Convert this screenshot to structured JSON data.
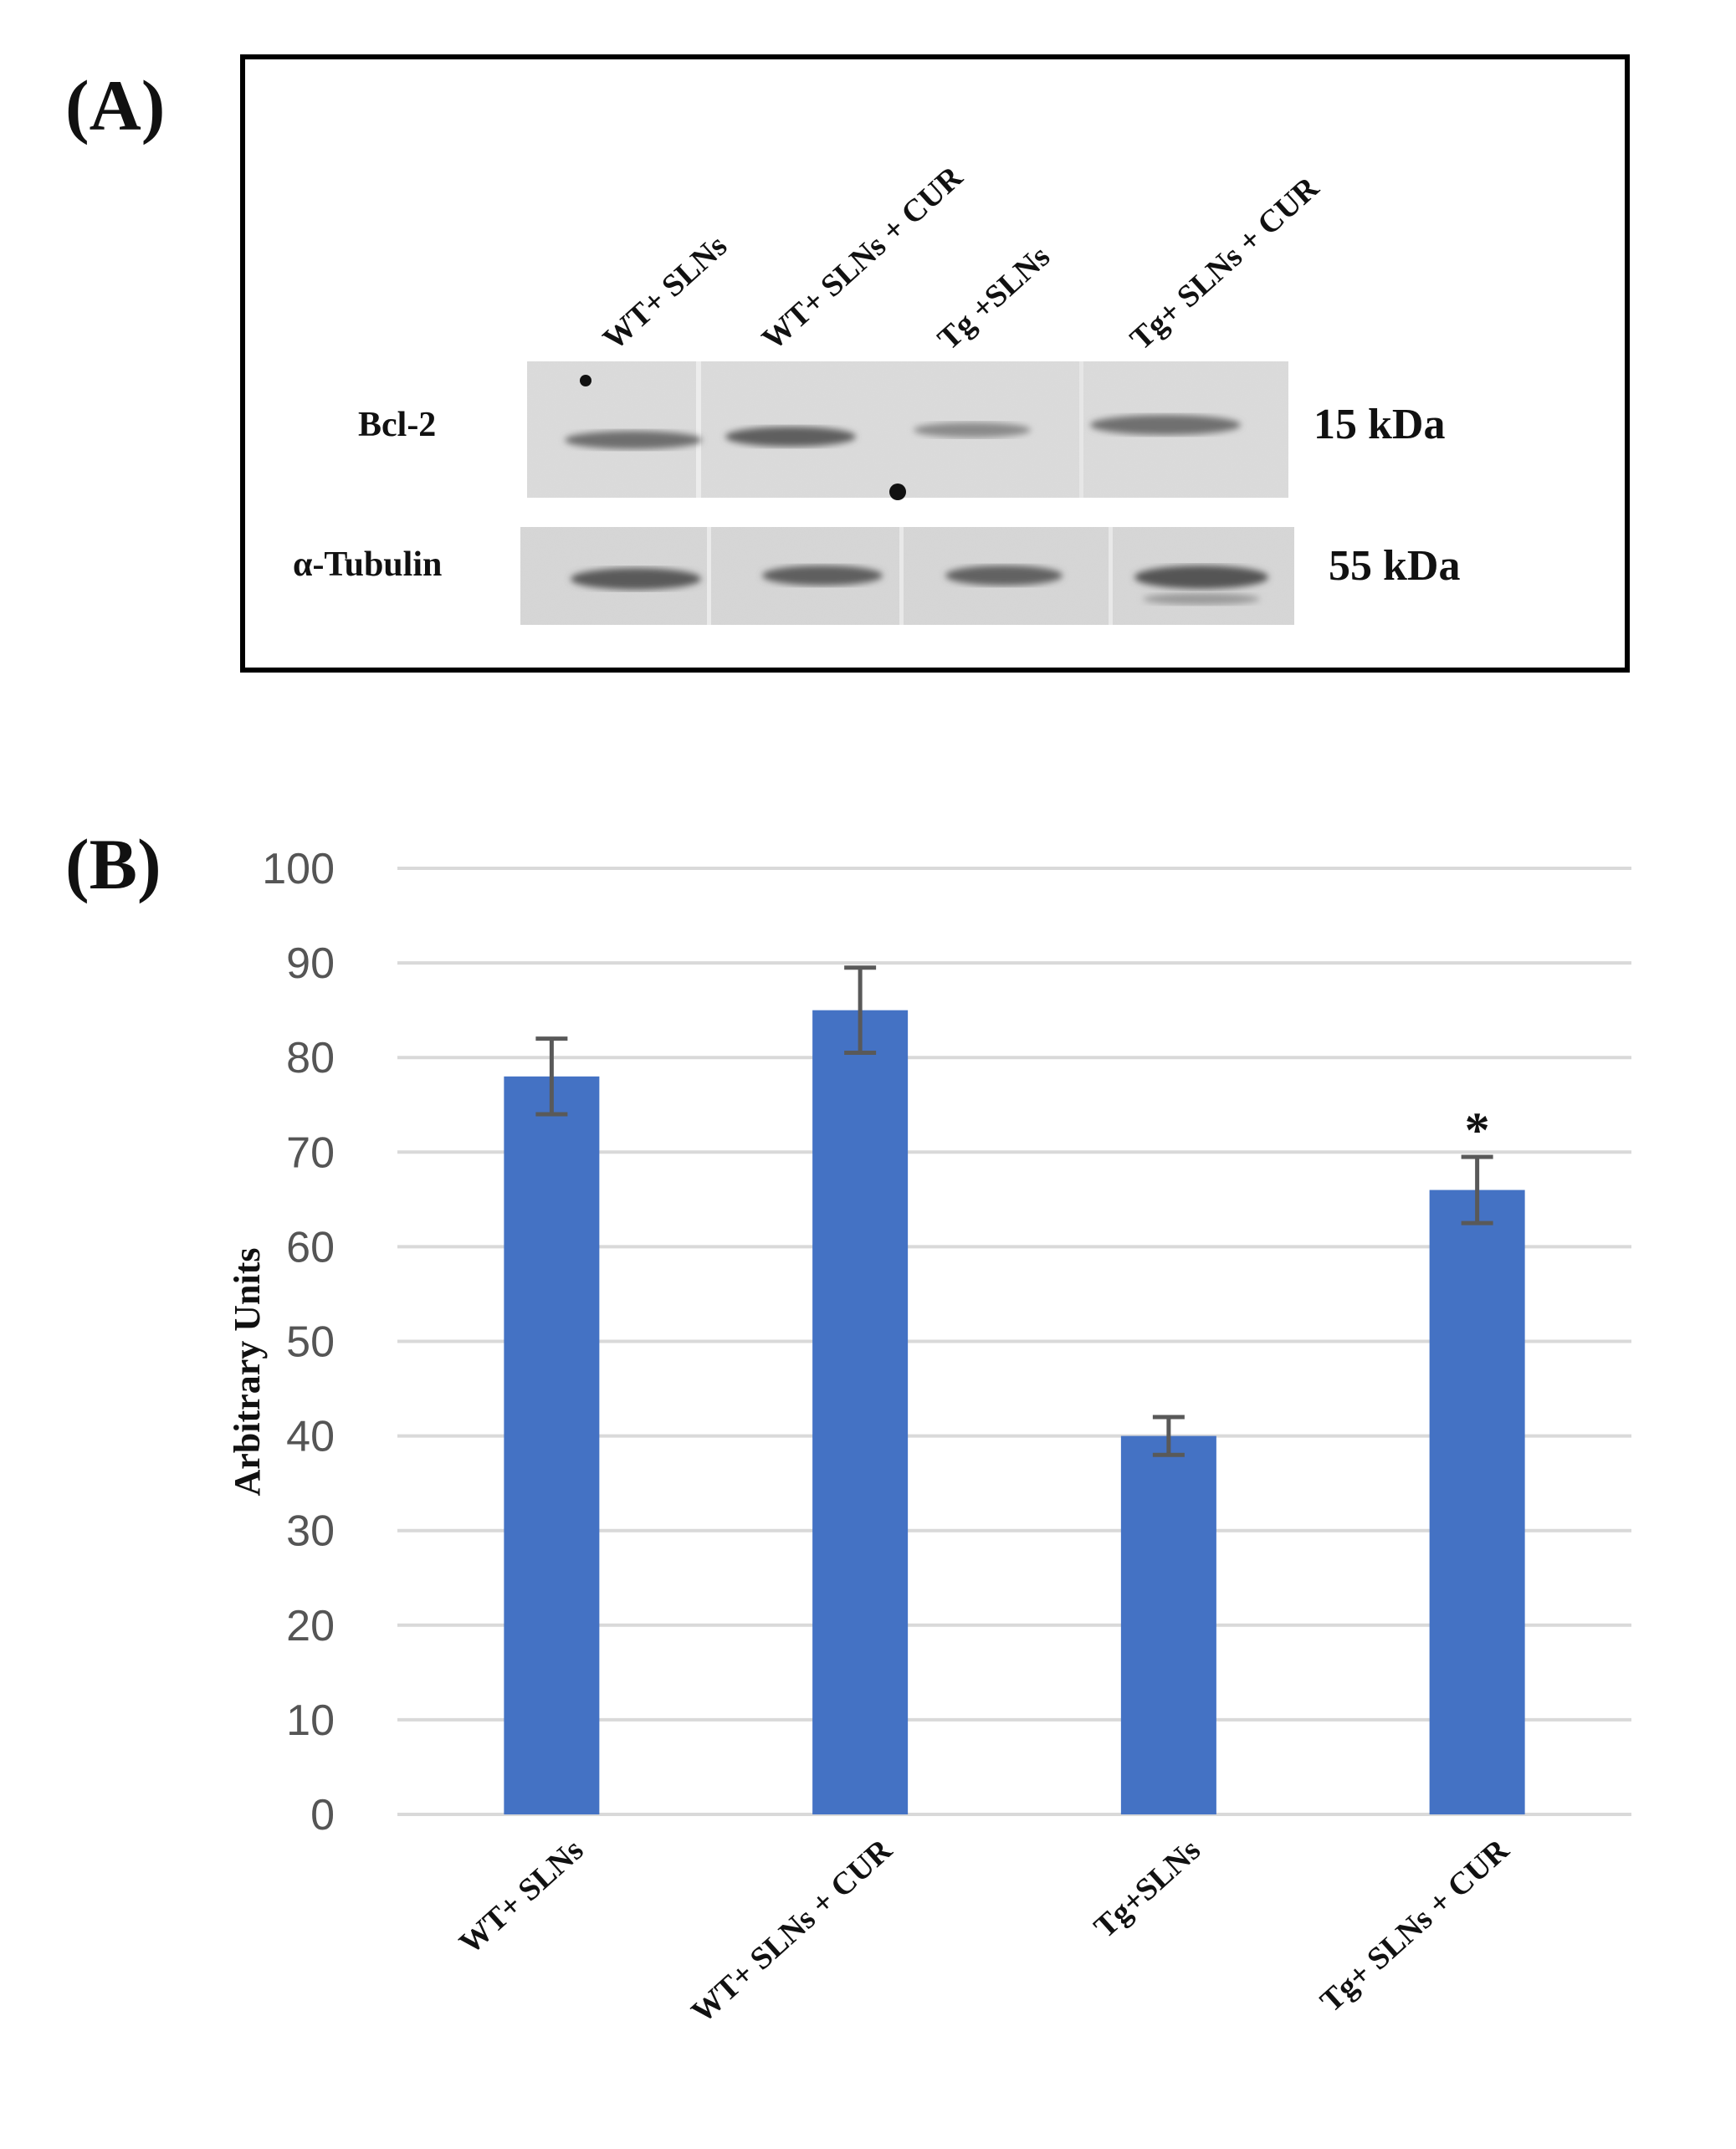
{
  "panel_a": {
    "label": "(A)",
    "lanes": [
      "WT+ SLNs",
      "WT+ SLNs + CUR",
      "Tg +SLNs",
      "Tg+ SLNs + CUR"
    ],
    "rows": [
      {
        "name": "Bcl-2",
        "size": "15 kDa"
      },
      {
        "name": "α-Tubulin",
        "size": "55 kDa"
      }
    ]
  },
  "panel_b": {
    "label": "(B)"
  },
  "chart_data": {
    "type": "bar",
    "categories": [
      "WT+ SLNs",
      "WT+ SLNs + CUR",
      "Tg+SLNs",
      "Tg+ SLNs + CUR"
    ],
    "values": [
      78,
      85,
      40,
      66
    ],
    "errors": [
      4,
      4.5,
      2,
      3.5
    ],
    "annotations": [
      "",
      "",
      "",
      "*"
    ],
    "title": "",
    "xlabel": "",
    "ylabel": "Arbitrary Units",
    "ylim": [
      0,
      100
    ],
    "yticks": [
      0,
      10,
      20,
      30,
      40,
      50,
      60,
      70,
      80,
      90,
      100
    ],
    "grid": true,
    "bar_color": "#4472c4",
    "error_color": "#595959"
  }
}
